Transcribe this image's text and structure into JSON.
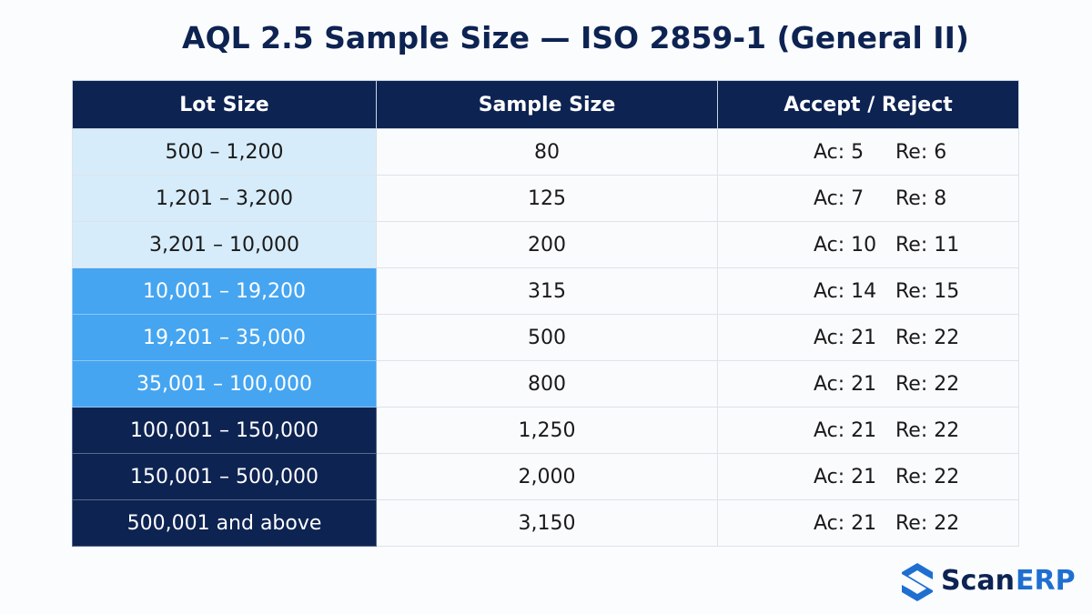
{
  "title": "AQL 2.5 Sample Size — ISO 2859-1 (General II)",
  "table": {
    "header": [
      "Lot Size",
      "Sample Size",
      "Accept / Reject"
    ],
    "rows": [
      [
        "500 – 1,200",
        "80",
        "Ac: 5",
        "Re: 6"
      ],
      [
        "1,201 – 3,200",
        "125",
        "Ac: 7",
        "Re: 8"
      ],
      [
        "3,201 – 10,000",
        "200",
        "Ac: 10",
        "Re: 11"
      ],
      [
        "10,001 – 19,200",
        "315",
        "Ac: 14",
        "Re: 15"
      ],
      [
        "19,201 – 35,000",
        "500",
        "Ac: 21",
        "Re: 22"
      ],
      [
        "35,001 – 100,000",
        "800",
        "Ac: 21",
        "Re: 22"
      ],
      [
        "100,001 – 150,000",
        "1,250",
        "Ac: 21",
        "Re: 22"
      ],
      [
        "150,001 – 500,000",
        "2,000",
        "Ac: 21",
        "Re: 22"
      ],
      [
        "500,001 and above",
        "3,150",
        "Ac: 21",
        "Re: 22"
      ]
    ]
  },
  "logo": {
    "brand": "Scan",
    "suffix": "ERP"
  }
}
